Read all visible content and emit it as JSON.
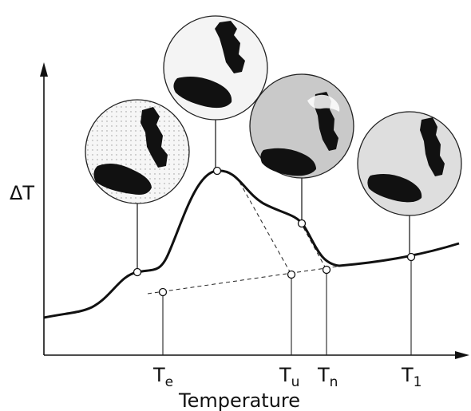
{
  "axes": {
    "y_label": "ΔT",
    "x_label": "Temperature"
  },
  "markers": [
    {
      "main": "T",
      "sub": "e"
    },
    {
      "main": "T",
      "sub": "u"
    },
    {
      "main": "T",
      "sub": "n"
    },
    {
      "main": "T",
      "sub": "1"
    }
  ]
}
